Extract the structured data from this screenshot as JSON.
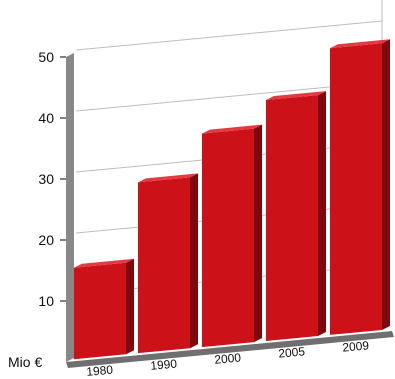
{
  "chart_data": {
    "type": "bar",
    "title": "",
    "xlabel": "",
    "ylabel": "",
    "unit_label": "Mio €",
    "categories": [
      "1980",
      "1990",
      "2000",
      "2005",
      "2009"
    ],
    "values": [
      15,
      28,
      35,
      39.5,
      47
    ],
    "ylim": [
      0,
      55
    ],
    "yticks": [
      "10",
      "20",
      "30",
      "40",
      "50"
    ],
    "ytick_values": [
      10,
      20,
      30,
      40,
      50
    ],
    "grid": true,
    "legend": "none",
    "colors": {
      "bar_front": "#cc1119",
      "bar_side": "#7e0a10",
      "bar_top": "#e23a40",
      "axis_wall": "#888888",
      "floor": "#6f6f6f",
      "grid": "#bdbdbd"
    }
  }
}
